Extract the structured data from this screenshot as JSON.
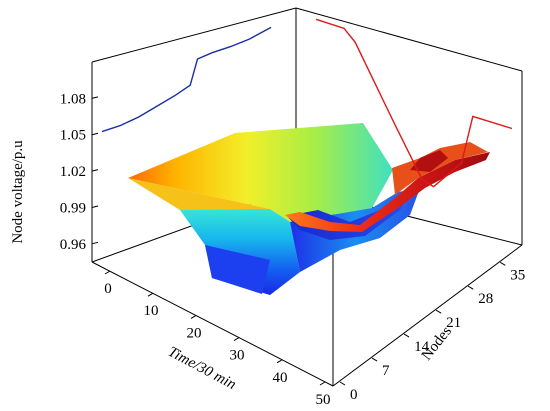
{
  "chart_data": {
    "type": "surface3d",
    "zlabel": "Node voltage/p.u",
    "xlabel": "Time/30 min",
    "ylabel": "Nodes",
    "time_ticks": [
      "0",
      "10",
      "20",
      "30",
      "40",
      "50"
    ],
    "node_ticks": [
      "0",
      "7",
      "14",
      "21",
      "28",
      "35"
    ],
    "voltage_ticks": [
      "0.96",
      "0.99",
      "1.02",
      "1.05",
      "1.08"
    ],
    "time_range": [
      0,
      50
    ],
    "node_range": [
      0,
      38
    ],
    "voltage_range": [
      0.945,
      1.11
    ],
    "back_projection_time": [
      {
        "t": 0,
        "v": 1.057
      },
      {
        "t": 5,
        "v": 1.058
      },
      {
        "t": 10,
        "v": 1.061
      },
      {
        "t": 15,
        "v": 1.066
      },
      {
        "t": 20,
        "v": 1.071
      },
      {
        "t": 24,
        "v": 1.076
      },
      {
        "t": 26,
        "v": 1.096
      },
      {
        "t": 30,
        "v": 1.098
      },
      {
        "t": 35,
        "v": 1.099
      },
      {
        "t": 40,
        "v": 1.101
      },
      {
        "t": 46,
        "v": 1.106
      }
    ],
    "side_projection_nodes": [
      {
        "n": 0,
        "v": 1.102
      },
      {
        "n": 5,
        "v": 1.101
      },
      {
        "n": 7,
        "v": 1.092
      },
      {
        "n": 14,
        "v": 1.034
      },
      {
        "n": 19,
        "v": 0.994
      },
      {
        "n": 21,
        "v": 0.991
      },
      {
        "n": 26,
        "v": 1.017
      },
      {
        "n": 28,
        "v": 1.058
      },
      {
        "n": 35,
        "v": 1.057
      }
    ],
    "colors": {
      "back_projection": "#1a2fa0",
      "side_projection": "#e01818",
      "surface_low": "#2020e0",
      "surface_high": "#c01010"
    }
  }
}
